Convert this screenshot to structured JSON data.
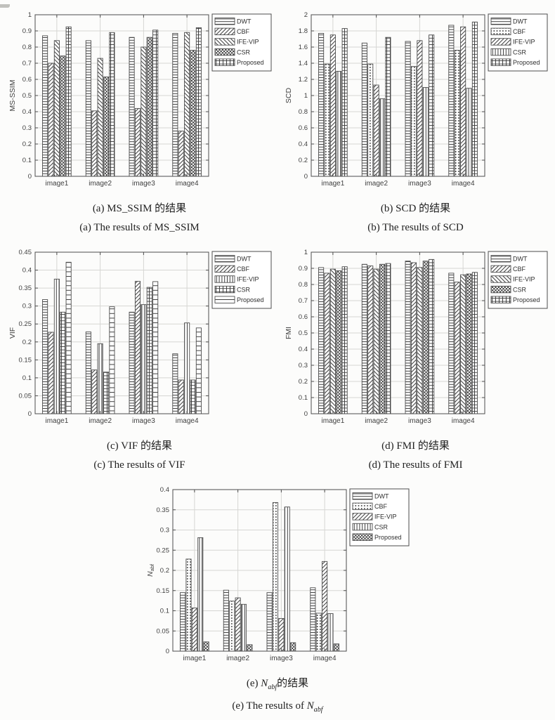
{
  "page": {
    "background": "#fcfcfb"
  },
  "colors": {
    "axis": "#4d4d4d",
    "grid": "#d6d6d3",
    "bar_stroke": "#4d4d4d",
    "pattern_ink": "#3f3f3f",
    "tick_text": "#3f3f3f",
    "legend_text": "#2f2f2f",
    "caption_text": "#1f1f1f",
    "bar_fill": "#ffffff"
  },
  "methods": [
    "DWT",
    "CBF",
    "IFE-VIP",
    "CSR",
    "Proposed"
  ],
  "categories": [
    "image1",
    "image2",
    "image3",
    "image4"
  ],
  "chart_data": [
    {
      "key": "ms_ssim",
      "type": "bar",
      "ylabel": "MS-SSIM",
      "ylim": [
        0,
        1
      ],
      "yticks": [
        "0",
        "0.1",
        "0.2",
        "0.3",
        "0.4",
        "0.5",
        "0.6",
        "0.7",
        "0.8",
        "0.9",
        "1"
      ],
      "categories": [
        "image1",
        "image2",
        "image3",
        "image4"
      ],
      "grid": true,
      "legend_position": "outside-top-right",
      "series": [
        {
          "name": "DWT",
          "pattern": "hlines",
          "values": [
            0.87,
            0.84,
            0.86,
            0.885
          ]
        },
        {
          "name": "CBF",
          "pattern": "diag-f",
          "values": [
            0.7,
            0.405,
            0.42,
            0.28
          ]
        },
        {
          "name": "IFE-VIP",
          "pattern": "diag-b",
          "values": [
            0.84,
            0.73,
            0.8,
            0.89
          ]
        },
        {
          "name": "CSR",
          "pattern": "checker",
          "values": [
            0.745,
            0.615,
            0.86,
            0.78
          ]
        },
        {
          "name": "Proposed",
          "pattern": "grid",
          "values": [
            0.925,
            0.89,
            0.905,
            0.92
          ]
        }
      ],
      "caption_zh": "(a) MS_SSIM 的结果",
      "caption_en": "(a) The results of MS_SSIM"
    },
    {
      "key": "scd",
      "type": "bar",
      "ylabel": "SCD",
      "ylim": [
        0,
        2
      ],
      "yticks": [
        "0",
        "0.2",
        "0.4",
        "0.6",
        "0.8",
        "1",
        "1.2",
        "1.4",
        "1.6",
        "1.8",
        "2"
      ],
      "categories": [
        "image1",
        "image2",
        "image3",
        "image4"
      ],
      "grid": true,
      "legend_position": "outside-top-right",
      "series": [
        {
          "name": "DWT",
          "pattern": "hlines",
          "values": [
            1.77,
            1.65,
            1.67,
            1.87
          ]
        },
        {
          "name": "CBF",
          "pattern": "dots",
          "values": [
            1.39,
            1.39,
            1.36,
            1.56
          ]
        },
        {
          "name": "IFE-VIP",
          "pattern": "diag-f",
          "values": [
            1.75,
            1.13,
            1.68,
            1.85
          ]
        },
        {
          "name": "CSR",
          "pattern": "vlines",
          "values": [
            1.3,
            0.96,
            1.1,
            1.09
          ]
        },
        {
          "name": "Proposed",
          "pattern": "grid",
          "values": [
            1.83,
            1.72,
            1.75,
            1.91
          ]
        }
      ],
      "caption_zh": "(b) SCD 的结果",
      "caption_en": "(b) The results of SCD"
    },
    {
      "key": "vif",
      "type": "bar",
      "ylabel": "VIF",
      "ylim": [
        0,
        0.45
      ],
      "yticks": [
        "0",
        "0.05",
        "0.1",
        "0.15",
        "0.2",
        "0.25",
        "0.3",
        "0.35",
        "0.4",
        "0.45"
      ],
      "categories": [
        "image1",
        "image2",
        "image3",
        "image4"
      ],
      "grid": true,
      "legend_position": "outside-top-right",
      "series": [
        {
          "name": "DWT",
          "pattern": "hlines",
          "values": [
            0.318,
            0.228,
            0.283,
            0.167
          ]
        },
        {
          "name": "CBF",
          "pattern": "diag-f",
          "values": [
            0.227,
            0.122,
            0.369,
            0.094
          ]
        },
        {
          "name": "IFE-VIP",
          "pattern": "vlines",
          "values": [
            0.375,
            0.195,
            0.304,
            0.253
          ]
        },
        {
          "name": "CSR",
          "pattern": "grid",
          "values": [
            0.283,
            0.116,
            0.352,
            0.094
          ]
        },
        {
          "name": "Proposed",
          "pattern": "hlines-wide",
          "values": [
            0.422,
            0.298,
            0.368,
            0.239
          ]
        }
      ],
      "caption_zh": "(c) VIF 的结果",
      "caption_en": "(c) The results of VIF"
    },
    {
      "key": "fmi",
      "type": "bar",
      "ylabel": "FMI",
      "ylim": [
        0,
        1
      ],
      "yticks": [
        "0",
        "0.1",
        "0.2",
        "0.3",
        "0.4",
        "0.5",
        "0.6",
        "0.7",
        "0.8",
        "0.9",
        "1"
      ],
      "categories": [
        "image1",
        "image2",
        "image3",
        "image4"
      ],
      "grid": true,
      "legend_position": "outside-top-right",
      "series": [
        {
          "name": "DWT",
          "pattern": "hlines",
          "values": [
            0.905,
            0.925,
            0.945,
            0.87
          ]
        },
        {
          "name": "CBF",
          "pattern": "diag-f",
          "values": [
            0.87,
            0.915,
            0.935,
            0.815
          ]
        },
        {
          "name": "IFE-VIP",
          "pattern": "diag-b",
          "values": [
            0.895,
            0.895,
            0.905,
            0.86
          ]
        },
        {
          "name": "CSR",
          "pattern": "checker",
          "values": [
            0.885,
            0.925,
            0.945,
            0.865
          ]
        },
        {
          "name": "Proposed",
          "pattern": "grid",
          "values": [
            0.91,
            0.93,
            0.955,
            0.875
          ]
        }
      ],
      "caption_zh": "(d) FMI 的结果",
      "caption_en": "(d) The results of FMI"
    },
    {
      "key": "nabf",
      "type": "bar",
      "ylabel": "Nabf",
      "ylabel_main": "N",
      "ylabel_sub": "abf",
      "ylim": [
        0,
        0.4
      ],
      "yticks": [
        "0",
        "0.05",
        "0.1",
        "0.15",
        "0.2",
        "0.25",
        "0.3",
        "0.35",
        "0.4"
      ],
      "categories": [
        "image1",
        "image2",
        "image3",
        "image4"
      ],
      "grid": true,
      "legend_position": "outside-top-right",
      "series": [
        {
          "name": "DWT",
          "pattern": "hlines",
          "values": [
            0.145,
            0.151,
            0.145,
            0.157
          ]
        },
        {
          "name": "CBF",
          "pattern": "dots",
          "values": [
            0.228,
            0.124,
            0.368,
            0.094
          ]
        },
        {
          "name": "IFE-VIP",
          "pattern": "diag-f",
          "values": [
            0.107,
            0.132,
            0.081,
            0.222
          ]
        },
        {
          "name": "CSR",
          "pattern": "vlines",
          "values": [
            0.281,
            0.116,
            0.357,
            0.093
          ]
        },
        {
          "name": "Proposed",
          "pattern": "checker",
          "values": [
            0.023,
            0.016,
            0.021,
            0.018
          ]
        }
      ],
      "caption_zh_parts": {
        "prefix": "(e) ",
        "symbol": "N",
        "sub": "abf",
        "suffix": "的结果"
      },
      "caption_en_parts": {
        "prefix": "(e) The results of ",
        "symbol": "N",
        "sub": "abf"
      }
    }
  ]
}
